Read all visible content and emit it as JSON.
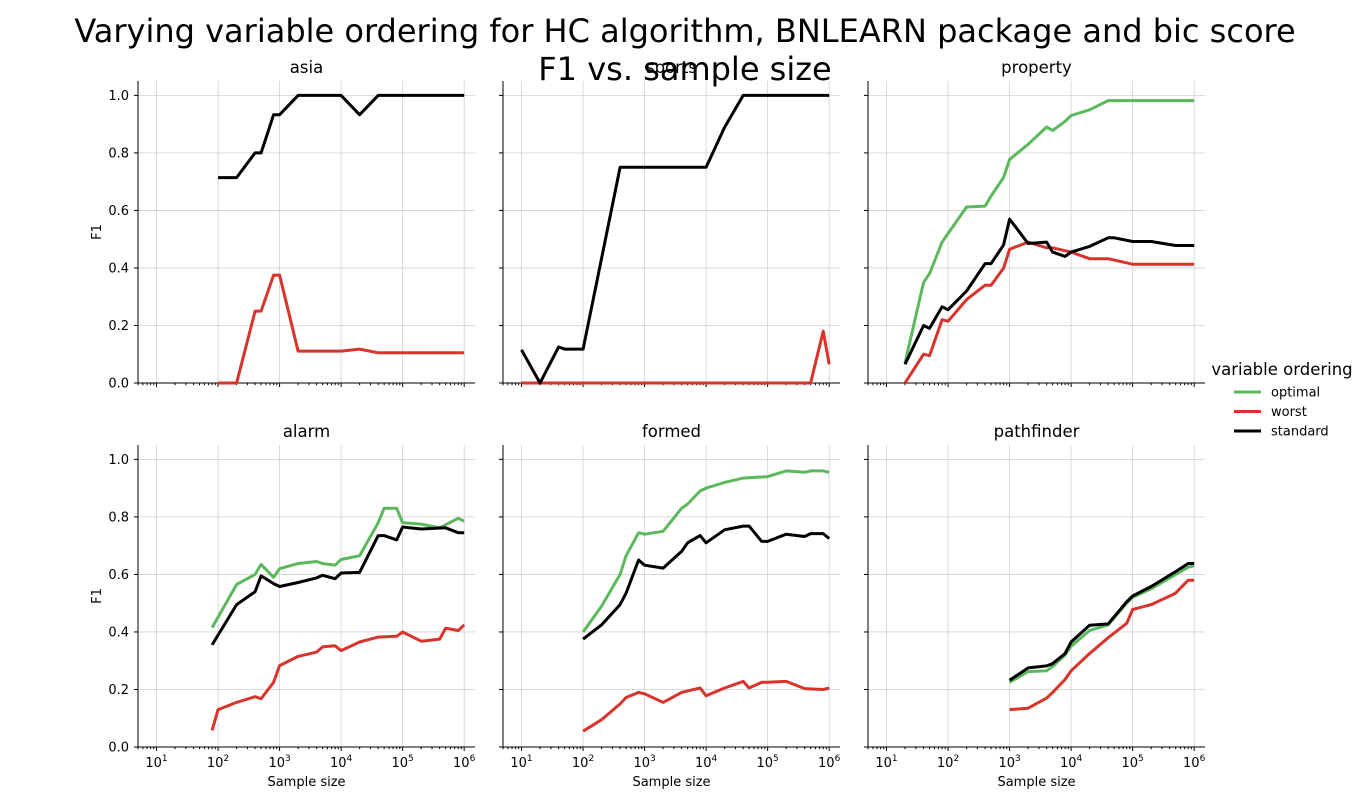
{
  "figure": {
    "title_line1": "Varying variable ordering for HC algorithm, BNLEARN package and bic score",
    "title_line2": "F1 vs. sample size",
    "legend_title": "variable ordering",
    "xlabel": "Sample size",
    "ylabel": "F1"
  },
  "legend": [
    {
      "name": "optimal",
      "color": "#5cb85c"
    },
    {
      "name": "worst",
      "color": "#d9342b"
    },
    {
      "name": "standard",
      "color": "#000000"
    }
  ],
  "chart_data": [
    {
      "type": "line",
      "title": "asia",
      "xscale": "log",
      "xlim": [
        5,
        1500000
      ],
      "ylim": [
        0,
        1.05
      ],
      "yticks": [
        0,
        0.2,
        0.4,
        0.6,
        0.8,
        1.0
      ],
      "xlabel": "",
      "ylabel": "F1",
      "grid": true,
      "series": [
        {
          "name": "worst",
          "color": "#d9342b",
          "x": [
            100,
            200,
            400,
            500,
            800,
            1000,
            2000,
            5000,
            10000,
            20000,
            40000,
            100000,
            1000000
          ],
          "y": [
            0,
            0,
            0.25,
            0.25,
            0.375,
            0.375,
            0.111,
            0.111,
            0.111,
            0.118,
            0.105,
            0.105,
            0.105
          ]
        },
        {
          "name": "standard",
          "color": "#000000",
          "x": [
            100,
            200,
            400,
            500,
            800,
            1000,
            2000,
            5000,
            10000,
            20000,
            40000,
            100000,
            1000000
          ],
          "y": [
            0.714,
            0.714,
            0.8,
            0.8,
            0.933,
            0.933,
            1.0,
            1.0,
            1.0,
            0.933,
            1.0,
            1.0,
            1.0
          ]
        }
      ]
    },
    {
      "type": "line",
      "title": "sports",
      "xscale": "log",
      "xlim": [
        5,
        1500000
      ],
      "ylim": [
        0,
        1.05
      ],
      "yticks": [
        0,
        0.2,
        0.4,
        0.6,
        0.8,
        1.0
      ],
      "xlabel": "",
      "ylabel": "",
      "grid": true,
      "series": [
        {
          "name": "worst",
          "color": "#d9342b",
          "x": [
            10,
            20,
            100,
            1000,
            10000,
            100000,
            500000,
            800000,
            1000000
          ],
          "y": [
            0,
            0,
            0,
            0,
            0,
            0,
            0,
            0.18,
            0.065
          ]
        },
        {
          "name": "standard",
          "color": "#000000",
          "x": [
            10,
            20,
            40,
            50,
            100,
            400,
            1000,
            10000,
            20000,
            40000,
            100000,
            1000000
          ],
          "y": [
            0.115,
            0,
            0.125,
            0.118,
            0.118,
            0.75,
            0.75,
            0.75,
            0.889,
            1.0,
            1.0,
            1.0
          ]
        }
      ]
    },
    {
      "type": "line",
      "title": "property",
      "xscale": "log",
      "xlim": [
        5,
        1500000
      ],
      "ylim": [
        0,
        1.05
      ],
      "yticks": [
        0,
        0.2,
        0.4,
        0.6,
        0.8,
        1.0
      ],
      "xlabel": "",
      "ylabel": "",
      "grid": true,
      "series": [
        {
          "name": "optimal",
          "color": "#5cb85c",
          "x": [
            20,
            40,
            50,
            80,
            100,
            200,
            400,
            500,
            800,
            1000,
            2000,
            4000,
            5000,
            8000,
            10000,
            20000,
            40000,
            100000,
            1000000
          ],
          "y": [
            0.07,
            0.35,
            0.38,
            0.49,
            0.52,
            0.612,
            0.615,
            0.65,
            0.715,
            0.777,
            0.83,
            0.89,
            0.878,
            0.91,
            0.93,
            0.95,
            0.982,
            0.982,
            0.982
          ]
        },
        {
          "name": "worst",
          "color": "#d9342b",
          "x": [
            20,
            40,
            50,
            80,
            100,
            200,
            400,
            500,
            800,
            1000,
            2000,
            4000,
            5000,
            8000,
            10000,
            20000,
            40000,
            100000,
            1000000
          ],
          "y": [
            0,
            0.1,
            0.095,
            0.22,
            0.215,
            0.29,
            0.34,
            0.34,
            0.4,
            0.465,
            0.49,
            0.47,
            0.47,
            0.46,
            0.455,
            0.432,
            0.432,
            0.413,
            0.413
          ]
        },
        {
          "name": "standard",
          "color": "#000000",
          "x": [
            20,
            40,
            50,
            80,
            100,
            200,
            400,
            500,
            800,
            1000,
            2000,
            4000,
            5000,
            8000,
            10000,
            20000,
            40000,
            50000,
            100000,
            200000,
            500000,
            1000000
          ],
          "y": [
            0.065,
            0.2,
            0.19,
            0.265,
            0.255,
            0.32,
            0.415,
            0.415,
            0.48,
            0.57,
            0.485,
            0.49,
            0.455,
            0.44,
            0.455,
            0.475,
            0.505,
            0.505,
            0.492,
            0.492,
            0.478,
            0.478
          ]
        }
      ]
    },
    {
      "type": "line",
      "title": "alarm",
      "xscale": "log",
      "xlim": [
        5,
        1500000
      ],
      "ylim": [
        0,
        1.05
      ],
      "yticks": [
        0,
        0.2,
        0.4,
        0.6,
        0.8,
        1.0
      ],
      "xticks": [
        "10^1",
        "10^2",
        "10^3",
        "10^4",
        "10^5",
        "10^6"
      ],
      "xlabel": "Sample size",
      "ylabel": "F1",
      "grid": true,
      "series": [
        {
          "name": "optimal",
          "color": "#5cb85c",
          "x": [
            80,
            200,
            400,
            500,
            800,
            1000,
            2000,
            4000,
            5000,
            8000,
            10000,
            20000,
            40000,
            50000,
            80000,
            100000,
            200000,
            400000,
            800000,
            1000000
          ],
          "y": [
            0.415,
            0.565,
            0.6,
            0.635,
            0.59,
            0.62,
            0.638,
            0.645,
            0.638,
            0.632,
            0.652,
            0.665,
            0.78,
            0.83,
            0.83,
            0.78,
            0.775,
            0.762,
            0.795,
            0.785
          ]
        },
        {
          "name": "worst",
          "color": "#d9342b",
          "x": [
            80,
            100,
            200,
            400,
            500,
            800,
            1000,
            2000,
            4000,
            5000,
            8000,
            10000,
            20000,
            40000,
            80000,
            100000,
            200000,
            400000,
            500000,
            800000,
            1000000
          ],
          "y": [
            0.058,
            0.13,
            0.155,
            0.175,
            0.168,
            0.225,
            0.283,
            0.315,
            0.33,
            0.348,
            0.352,
            0.335,
            0.365,
            0.382,
            0.385,
            0.4,
            0.368,
            0.375,
            0.413,
            0.405,
            0.425
          ]
        },
        {
          "name": "standard",
          "color": "#000000",
          "x": [
            80,
            200,
            400,
            500,
            800,
            1000,
            2000,
            4000,
            5000,
            8000,
            10000,
            20000,
            40000,
            50000,
            80000,
            100000,
            200000,
            500000,
            800000,
            1000000
          ],
          "y": [
            0.355,
            0.495,
            0.54,
            0.595,
            0.568,
            0.558,
            0.572,
            0.588,
            0.597,
            0.585,
            0.605,
            0.607,
            0.735,
            0.735,
            0.72,
            0.765,
            0.758,
            0.762,
            0.745,
            0.745
          ]
        }
      ]
    },
    {
      "type": "line",
      "title": "formed",
      "xscale": "log",
      "xlim": [
        5,
        1500000
      ],
      "ylim": [
        0,
        1.05
      ],
      "yticks": [
        0,
        0.2,
        0.4,
        0.6,
        0.8,
        1.0
      ],
      "xticks": [
        "10^1",
        "10^2",
        "10^3",
        "10^4",
        "10^5",
        "10^6"
      ],
      "xlabel": "Sample size",
      "ylabel": "",
      "grid": true,
      "series": [
        {
          "name": "optimal",
          "color": "#5cb85c",
          "x": [
            100,
            200,
            400,
            500,
            800,
            1000,
            2000,
            4000,
            5000,
            8000,
            10000,
            20000,
            40000,
            100000,
            200000,
            400000,
            500000,
            800000,
            1000000
          ],
          "y": [
            0.4,
            0.49,
            0.6,
            0.665,
            0.745,
            0.74,
            0.75,
            0.83,
            0.845,
            0.89,
            0.9,
            0.92,
            0.935,
            0.94,
            0.96,
            0.955,
            0.96,
            0.96,
            0.955
          ]
        },
        {
          "name": "worst",
          "color": "#d9342b",
          "x": [
            100,
            200,
            400,
            500,
            800,
            1000,
            2000,
            4000,
            5000,
            8000,
            10000,
            20000,
            40000,
            50000,
            80000,
            100000,
            200000,
            400000,
            800000,
            1000000
          ],
          "y": [
            0.055,
            0.095,
            0.15,
            0.172,
            0.19,
            0.185,
            0.155,
            0.19,
            0.195,
            0.205,
            0.178,
            0.205,
            0.228,
            0.205,
            0.225,
            0.225,
            0.228,
            0.203,
            0.2,
            0.205
          ]
        },
        {
          "name": "standard",
          "color": "#000000",
          "x": [
            100,
            200,
            400,
            500,
            800,
            1000,
            2000,
            4000,
            5000,
            8000,
            10000,
            20000,
            40000,
            50000,
            80000,
            100000,
            200000,
            400000,
            500000,
            800000,
            1000000
          ],
          "y": [
            0.375,
            0.425,
            0.495,
            0.535,
            0.65,
            0.632,
            0.622,
            0.68,
            0.71,
            0.735,
            0.71,
            0.755,
            0.768,
            0.768,
            0.715,
            0.715,
            0.74,
            0.732,
            0.742,
            0.742,
            0.725
          ]
        }
      ]
    },
    {
      "type": "line",
      "title": "pathfinder",
      "xscale": "log",
      "xlim": [
        5,
        1500000
      ],
      "ylim": [
        0,
        1.05
      ],
      "yticks": [
        0,
        0.2,
        0.4,
        0.6,
        0.8,
        1.0
      ],
      "xticks": [
        "10^1",
        "10^2",
        "10^3",
        "10^4",
        "10^5",
        "10^6"
      ],
      "xlabel": "Sample size",
      "ylabel": "",
      "grid": true,
      "series": [
        {
          "name": "optimal",
          "color": "#5cb85c",
          "x": [
            1000,
            2000,
            4000,
            5000,
            8000,
            10000,
            20000,
            40000,
            80000,
            100000,
            200000,
            500000,
            800000,
            1000000
          ],
          "y": [
            0.225,
            0.262,
            0.265,
            0.28,
            0.32,
            0.35,
            0.405,
            0.425,
            0.5,
            0.52,
            0.55,
            0.6,
            0.625,
            0.63
          ]
        },
        {
          "name": "worst",
          "color": "#d9342b",
          "x": [
            1000,
            2000,
            4000,
            5000,
            8000,
            10000,
            20000,
            40000,
            80000,
            100000,
            200000,
            400000,
            500000,
            800000,
            1000000
          ],
          "y": [
            0.13,
            0.135,
            0.17,
            0.19,
            0.235,
            0.265,
            0.325,
            0.38,
            0.43,
            0.478,
            0.495,
            0.525,
            0.535,
            0.58,
            0.58
          ]
        },
        {
          "name": "standard",
          "color": "#000000",
          "x": [
            1000,
            2000,
            4000,
            5000,
            8000,
            10000,
            20000,
            40000,
            80000,
            100000,
            200000,
            500000,
            800000,
            1000000
          ],
          "y": [
            0.232,
            0.275,
            0.282,
            0.29,
            0.325,
            0.365,
            0.423,
            0.428,
            0.505,
            0.525,
            0.558,
            0.61,
            0.638,
            0.638
          ]
        }
      ]
    }
  ]
}
